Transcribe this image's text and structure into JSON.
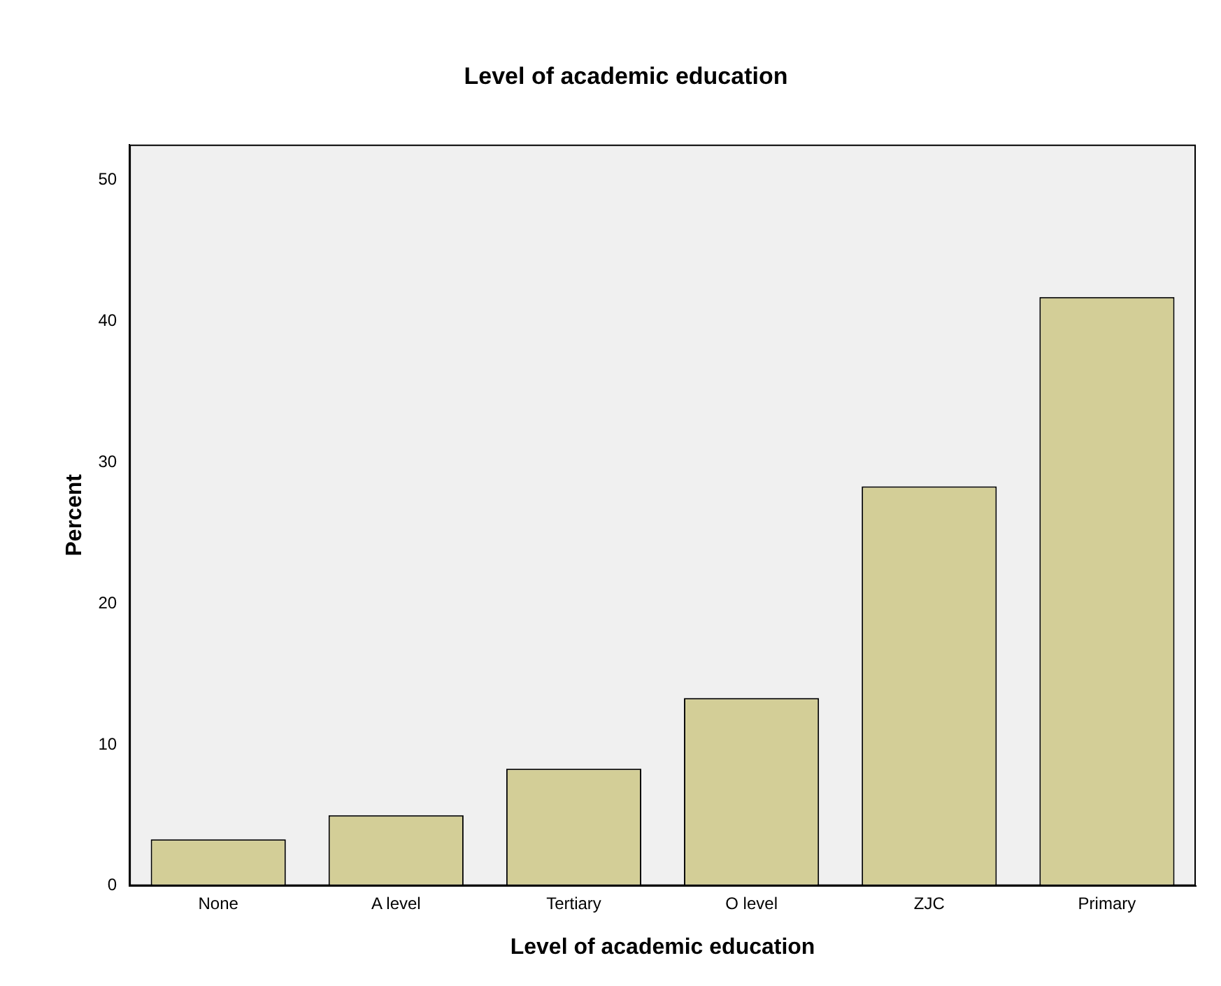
{
  "chart_data": {
    "type": "bar",
    "title": "Level of academic education",
    "xlabel": "Level of academic education",
    "ylabel": "Percent",
    "categories": [
      "None",
      "A level",
      "Tertiary",
      "O level",
      "ZJC",
      "Primary"
    ],
    "values": [
      3.3,
      5.0,
      8.3,
      13.3,
      28.3,
      41.7
    ],
    "color": "#d3ce97",
    "ylim": [
      0,
      52.5
    ],
    "yticks": [
      0,
      10,
      20,
      30,
      40,
      50
    ],
    "grid": false,
    "legend": false
  }
}
